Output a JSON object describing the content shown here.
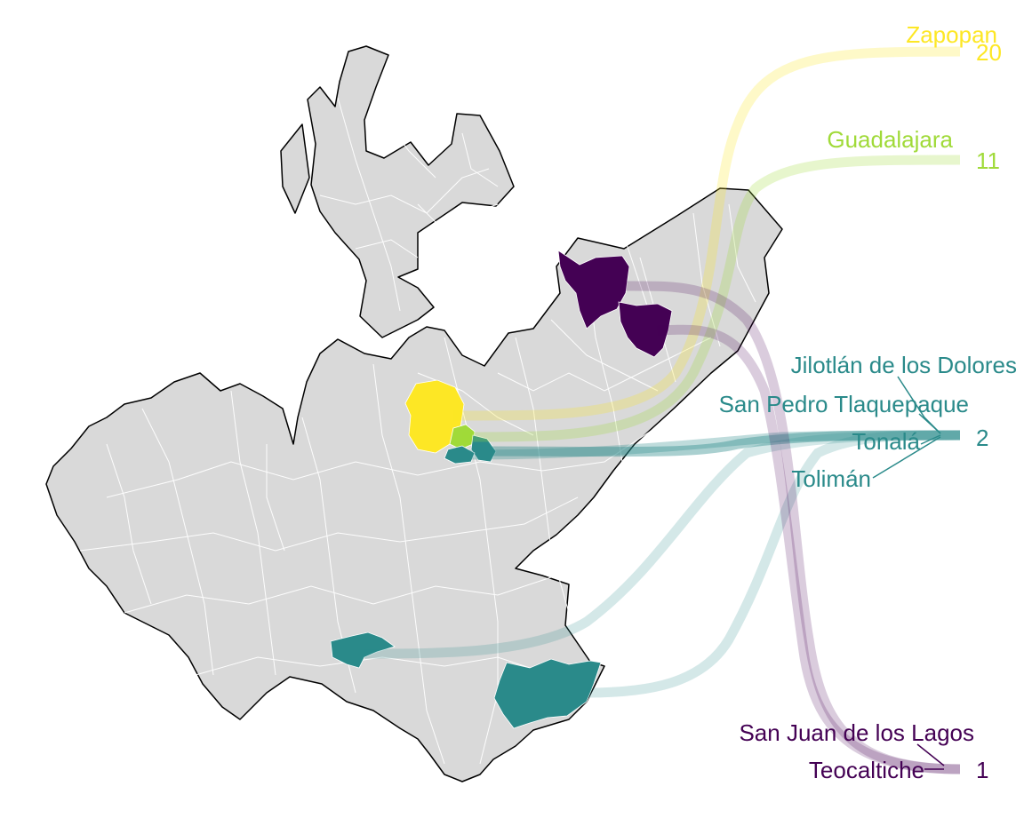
{
  "map": {
    "region": "Jalisco",
    "base_color": "#d9d9d9",
    "border_color": "#ffffff",
    "outline_color": "#000000",
    "color_scale": "viridis",
    "municipalities": [
      {
        "name": "Zapopan",
        "value": "20",
        "color": "#fde725"
      },
      {
        "name": "Guadalajara",
        "value": "11",
        "color": "#a0da39"
      },
      {
        "name": "Jilotlán de los Dolores",
        "value": "2",
        "color": "#2a8a8a"
      },
      {
        "name": "San Pedro Tlaquepaque",
        "value": "2",
        "color": "#2a8a8a"
      },
      {
        "name": "Tonalá",
        "value": "2",
        "color": "#2a8a8a"
      },
      {
        "name": "Tolimán",
        "value": "2",
        "color": "#2a8a8a"
      },
      {
        "name": "San Juan de los Lagos",
        "value": "1",
        "color": "#440154"
      },
      {
        "name": "Teocaltiche",
        "value": "1",
        "color": "#440154"
      }
    ],
    "values": [
      {
        "value": "20",
        "color": "#fde725"
      },
      {
        "value": "11",
        "color": "#a0da39"
      },
      {
        "value": "2",
        "color": "#2a8a8a"
      },
      {
        "value": "1",
        "color": "#440154"
      }
    ]
  }
}
